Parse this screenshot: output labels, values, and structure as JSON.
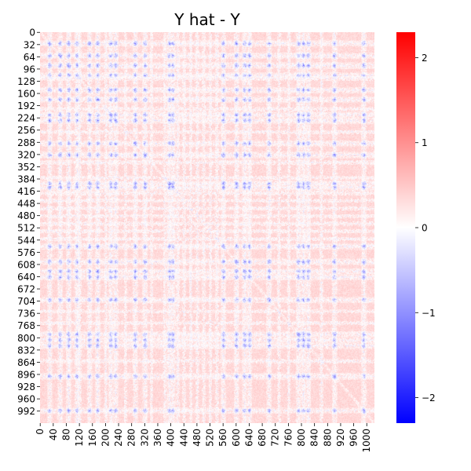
{
  "chart_data": {
    "type": "heatmap",
    "title": "Y hat - Y",
    "xlabel": "",
    "ylabel": "",
    "matrix_size": 1024,
    "y_tick_labels": [
      "0",
      "32",
      "64",
      "96",
      "128",
      "160",
      "192",
      "224",
      "256",
      "288",
      "320",
      "352",
      "384",
      "416",
      "448",
      "480",
      "512",
      "544",
      "576",
      "608",
      "640",
      "672",
      "704",
      "736",
      "768",
      "800",
      "832",
      "864",
      "896",
      "928",
      "960",
      "992"
    ],
    "x_tick_labels": [
      "0",
      "40",
      "80",
      "120",
      "160",
      "200",
      "240",
      "280",
      "320",
      "360",
      "400",
      "440",
      "480",
      "520",
      "560",
      "600",
      "640",
      "680",
      "720",
      "760",
      "800",
      "840",
      "880",
      "920",
      "960",
      "1000"
    ],
    "colorbar": {
      "colormap": "bwr",
      "vmin": -2.3,
      "vmax": 2.3,
      "tick_labels": [
        "−2",
        "−1",
        "0",
        "1",
        "2"
      ],
      "tick_values": [
        -2,
        -1,
        0,
        1,
        2
      ]
    },
    "grid": false,
    "legend": "colorbar-right",
    "pattern_note_values": {
      "dominant_value": 0.35,
      "band_min_value": -1.2
    },
    "negative_bands": [
      28,
      60,
      86,
      112,
      150,
      175,
      215,
      230,
      290,
      320,
      395,
      405,
      560,
      600,
      625,
      640,
      700,
      790,
      805,
      820,
      900,
      990
    ],
    "light_bands": [
      120,
      200,
      260,
      340,
      380,
      420,
      440,
      460,
      480,
      500,
      520,
      540,
      730,
      760,
      860
    ]
  },
  "colors": {
    "negative": "#0000ff",
    "zero": "#ffffff",
    "positive": "#ff0000"
  }
}
